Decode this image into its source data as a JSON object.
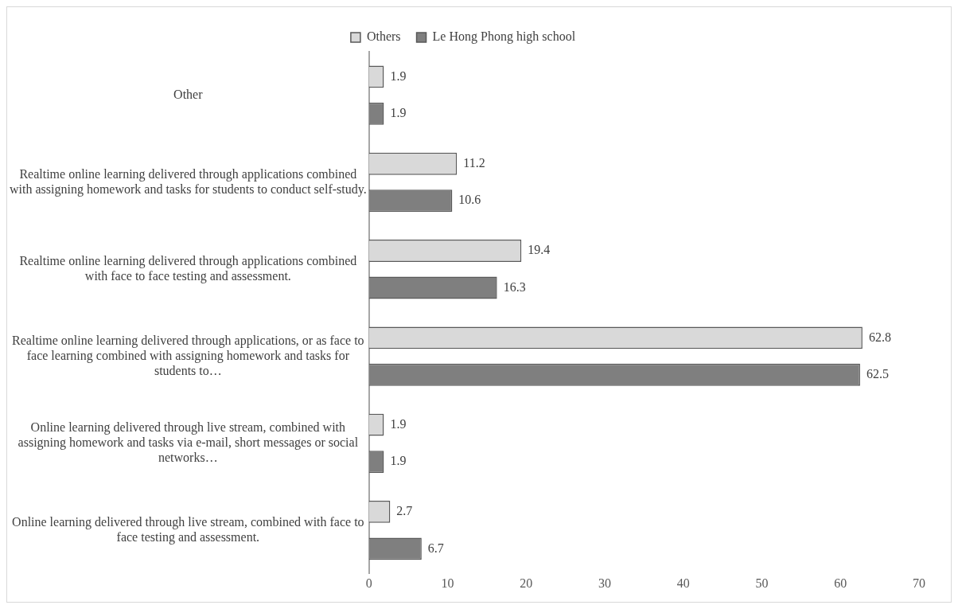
{
  "chart_data": {
    "type": "bar",
    "orientation": "horizontal",
    "categories": [
      "Other",
      "Realtime online learning delivered through applications combined with assigning homework and tasks for students to conduct self-study.",
      "Realtime online learning delivered through applications combined with face to face testing and assessment.",
      "Realtime online learning delivered through applications, or as face to face learning combined with assigning homework and tasks for students to…",
      "Online learning delivered through live stream, combined with assigning homework and tasks via e-mail, short messages or social networks…",
      "Online learning delivered through live stream, combined with face to face testing and assessment."
    ],
    "series": [
      {
        "name": "Others",
        "color": "#d9d9d9",
        "values": [
          1.9,
          11.2,
          19.4,
          62.8,
          1.9,
          2.7
        ]
      },
      {
        "name": "Le Hong Phong high school",
        "color": "#7f7f7f",
        "values": [
          1.9,
          10.6,
          16.3,
          62.5,
          1.9,
          6.7
        ]
      }
    ],
    "xlim": [
      0,
      70
    ],
    "xticks": [
      0,
      10,
      20,
      30,
      40,
      50,
      60,
      70
    ],
    "grid": false,
    "legend": "top",
    "data_labels": true
  }
}
